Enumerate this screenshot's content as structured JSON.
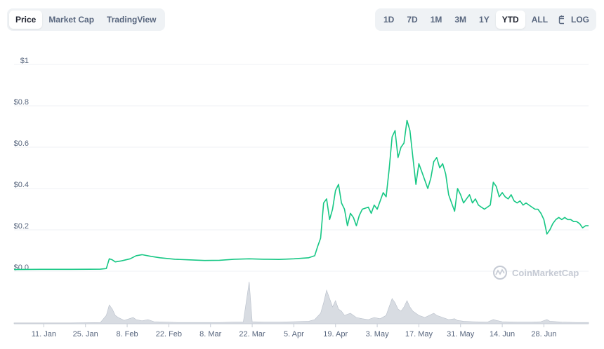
{
  "view_tabs": [
    {
      "label": "Price",
      "active": true
    },
    {
      "label": "Market Cap",
      "active": false
    },
    {
      "label": "TradingView",
      "active": false
    }
  ],
  "range_tabs": [
    {
      "label": "1D",
      "active": false
    },
    {
      "label": "7D",
      "active": false
    },
    {
      "label": "1M",
      "active": false
    },
    {
      "label": "3M",
      "active": false
    },
    {
      "label": "1Y",
      "active": false
    },
    {
      "label": "YTD",
      "active": true
    },
    {
      "label": "ALL",
      "active": false
    }
  ],
  "calendar_icon": "calendar-icon",
  "log_label": "LOG",
  "watermark": "CoinMarketCap",
  "watermark_icon": "coinmarketcap-logo-icon",
  "colors": {
    "line": "#16c784",
    "volume": "#c7cdd6",
    "grid": "#eff2f5",
    "text": "#58667e"
  },
  "chart_data": {
    "type": "line",
    "title": "",
    "xlabel": "",
    "ylabel": "",
    "ylim": [
      0,
      1
    ],
    "yticks": [
      "$1",
      "$0.8",
      "$0.6",
      "$0.4",
      "$0.2",
      "$0.0"
    ],
    "ytick_values": [
      1,
      0.8,
      0.6,
      0.4,
      0.2,
      0
    ],
    "xticks": [
      "11. Jan",
      "25. Jan",
      "8. Feb",
      "22. Feb",
      "8. Mar",
      "22. Mar",
      "5. Apr",
      "19. Apr",
      "3. May",
      "17. May",
      "31. May",
      "14. Jun",
      "28. Jun"
    ],
    "xtick_days": [
      11,
      25,
      39,
      53,
      67,
      81,
      95,
      109,
      123,
      137,
      151,
      165,
      179
    ],
    "x_unit": "day of 2021",
    "grid": true,
    "series": [
      {
        "values": [
          [
            1,
            0.008
          ],
          [
            10,
            0.009
          ],
          [
            20,
            0.009
          ],
          [
            30,
            0.01
          ],
          [
            32,
            0.013
          ],
          [
            33,
            0.06
          ],
          [
            34,
            0.055
          ],
          [
            35,
            0.045
          ],
          [
            37,
            0.05
          ],
          [
            40,
            0.06
          ],
          [
            42,
            0.075
          ],
          [
            44,
            0.08
          ],
          [
            47,
            0.072
          ],
          [
            50,
            0.065
          ],
          [
            55,
            0.058
          ],
          [
            60,
            0.055
          ],
          [
            65,
            0.052
          ],
          [
            70,
            0.053
          ],
          [
            75,
            0.058
          ],
          [
            80,
            0.06
          ],
          [
            85,
            0.058
          ],
          [
            90,
            0.057
          ],
          [
            95,
            0.06
          ],
          [
            100,
            0.065
          ],
          [
            102,
            0.075
          ],
          [
            103,
            0.12
          ],
          [
            104,
            0.16
          ],
          [
            105,
            0.33
          ],
          [
            106,
            0.35
          ],
          [
            107,
            0.25
          ],
          [
            108,
            0.3
          ],
          [
            109,
            0.39
          ],
          [
            110,
            0.42
          ],
          [
            111,
            0.33
          ],
          [
            112,
            0.3
          ],
          [
            113,
            0.22
          ],
          [
            114,
            0.28
          ],
          [
            115,
            0.26
          ],
          [
            116,
            0.22
          ],
          [
            117,
            0.27
          ],
          [
            118,
            0.3
          ],
          [
            120,
            0.31
          ],
          [
            121,
            0.28
          ],
          [
            122,
            0.32
          ],
          [
            123,
            0.3
          ],
          [
            125,
            0.38
          ],
          [
            126,
            0.36
          ],
          [
            127,
            0.49
          ],
          [
            128,
            0.65
          ],
          [
            129,
            0.68
          ],
          [
            130,
            0.55
          ],
          [
            131,
            0.6
          ],
          [
            132,
            0.62
          ],
          [
            133,
            0.73
          ],
          [
            134,
            0.68
          ],
          [
            135,
            0.55
          ],
          [
            136,
            0.42
          ],
          [
            137,
            0.52
          ],
          [
            138,
            0.48
          ],
          [
            139,
            0.44
          ],
          [
            140,
            0.4
          ],
          [
            141,
            0.45
          ],
          [
            142,
            0.53
          ],
          [
            143,
            0.55
          ],
          [
            144,
            0.5
          ],
          [
            145,
            0.52
          ],
          [
            146,
            0.47
          ],
          [
            147,
            0.37
          ],
          [
            148,
            0.33
          ],
          [
            149,
            0.29
          ],
          [
            150,
            0.4
          ],
          [
            151,
            0.37
          ],
          [
            152,
            0.33
          ],
          [
            153,
            0.35
          ],
          [
            154,
            0.37
          ],
          [
            155,
            0.33
          ],
          [
            156,
            0.35
          ],
          [
            157,
            0.32
          ],
          [
            158,
            0.31
          ],
          [
            159,
            0.3
          ],
          [
            160,
            0.31
          ],
          [
            161,
            0.32
          ],
          [
            162,
            0.43
          ],
          [
            163,
            0.41
          ],
          [
            164,
            0.36
          ],
          [
            165,
            0.38
          ],
          [
            166,
            0.36
          ],
          [
            167,
            0.35
          ],
          [
            168,
            0.37
          ],
          [
            169,
            0.34
          ],
          [
            170,
            0.33
          ],
          [
            171,
            0.34
          ],
          [
            172,
            0.32
          ],
          [
            173,
            0.33
          ],
          [
            174,
            0.32
          ],
          [
            175,
            0.31
          ],
          [
            176,
            0.3
          ],
          [
            177,
            0.3
          ],
          [
            178,
            0.28
          ],
          [
            179,
            0.25
          ],
          [
            180,
            0.18
          ],
          [
            181,
            0.2
          ],
          [
            182,
            0.23
          ],
          [
            183,
            0.25
          ],
          [
            184,
            0.26
          ],
          [
            185,
            0.25
          ],
          [
            186,
            0.26
          ],
          [
            187,
            0.25
          ],
          [
            188,
            0.25
          ],
          [
            189,
            0.24
          ],
          [
            190,
            0.24
          ],
          [
            191,
            0.23
          ],
          [
            192,
            0.21
          ],
          [
            193,
            0.22
          ],
          [
            194,
            0.22
          ]
        ]
      }
    ],
    "volume": [
      [
        1,
        0.02
      ],
      [
        10,
        0.02
      ],
      [
        20,
        0.02
      ],
      [
        30,
        0.03
      ],
      [
        32,
        0.2
      ],
      [
        33,
        0.45
      ],
      [
        34,
        0.35
      ],
      [
        35,
        0.2
      ],
      [
        36,
        0.15
      ],
      [
        38,
        0.08
      ],
      [
        41,
        0.15
      ],
      [
        42,
        0.1
      ],
      [
        44,
        0.07
      ],
      [
        46,
        0.1
      ],
      [
        48,
        0.05
      ],
      [
        52,
        0.04
      ],
      [
        56,
        0.03
      ],
      [
        60,
        0.03
      ],
      [
        65,
        0.03
      ],
      [
        70,
        0.03
      ],
      [
        75,
        0.04
      ],
      [
        78,
        0.04
      ],
      [
        80,
        1.0
      ],
      [
        81,
        0.05
      ],
      [
        85,
        0.04
      ],
      [
        90,
        0.04
      ],
      [
        95,
        0.05
      ],
      [
        100,
        0.06
      ],
      [
        102,
        0.1
      ],
      [
        104,
        0.25
      ],
      [
        105,
        0.5
      ],
      [
        106,
        0.8
      ],
      [
        107,
        0.6
      ],
      [
        108,
        0.4
      ],
      [
        109,
        0.55
      ],
      [
        110,
        0.35
      ],
      [
        111,
        0.3
      ],
      [
        112,
        0.2
      ],
      [
        114,
        0.25
      ],
      [
        116,
        0.15
      ],
      [
        118,
        0.12
      ],
      [
        120,
        0.1
      ],
      [
        122,
        0.15
      ],
      [
        124,
        0.12
      ],
      [
        126,
        0.2
      ],
      [
        127,
        0.4
      ],
      [
        128,
        0.6
      ],
      [
        129,
        0.5
      ],
      [
        130,
        0.35
      ],
      [
        131,
        0.3
      ],
      [
        132,
        0.4
      ],
      [
        133,
        0.55
      ],
      [
        134,
        0.4
      ],
      [
        135,
        0.3
      ],
      [
        136,
        0.25
      ],
      [
        137,
        0.2
      ],
      [
        139,
        0.15
      ],
      [
        142,
        0.25
      ],
      [
        143,
        0.2
      ],
      [
        145,
        0.15
      ],
      [
        147,
        0.1
      ],
      [
        149,
        0.12
      ],
      [
        150,
        0.08
      ],
      [
        152,
        0.06
      ],
      [
        155,
        0.05
      ],
      [
        160,
        0.04
      ],
      [
        162,
        0.1
      ],
      [
        163,
        0.08
      ],
      [
        165,
        0.05
      ],
      [
        170,
        0.04
      ],
      [
        175,
        0.04
      ],
      [
        178,
        0.05
      ],
      [
        180,
        0.1
      ],
      [
        181,
        0.06
      ],
      [
        185,
        0.04
      ],
      [
        190,
        0.03
      ],
      [
        194,
        0.03
      ]
    ]
  }
}
